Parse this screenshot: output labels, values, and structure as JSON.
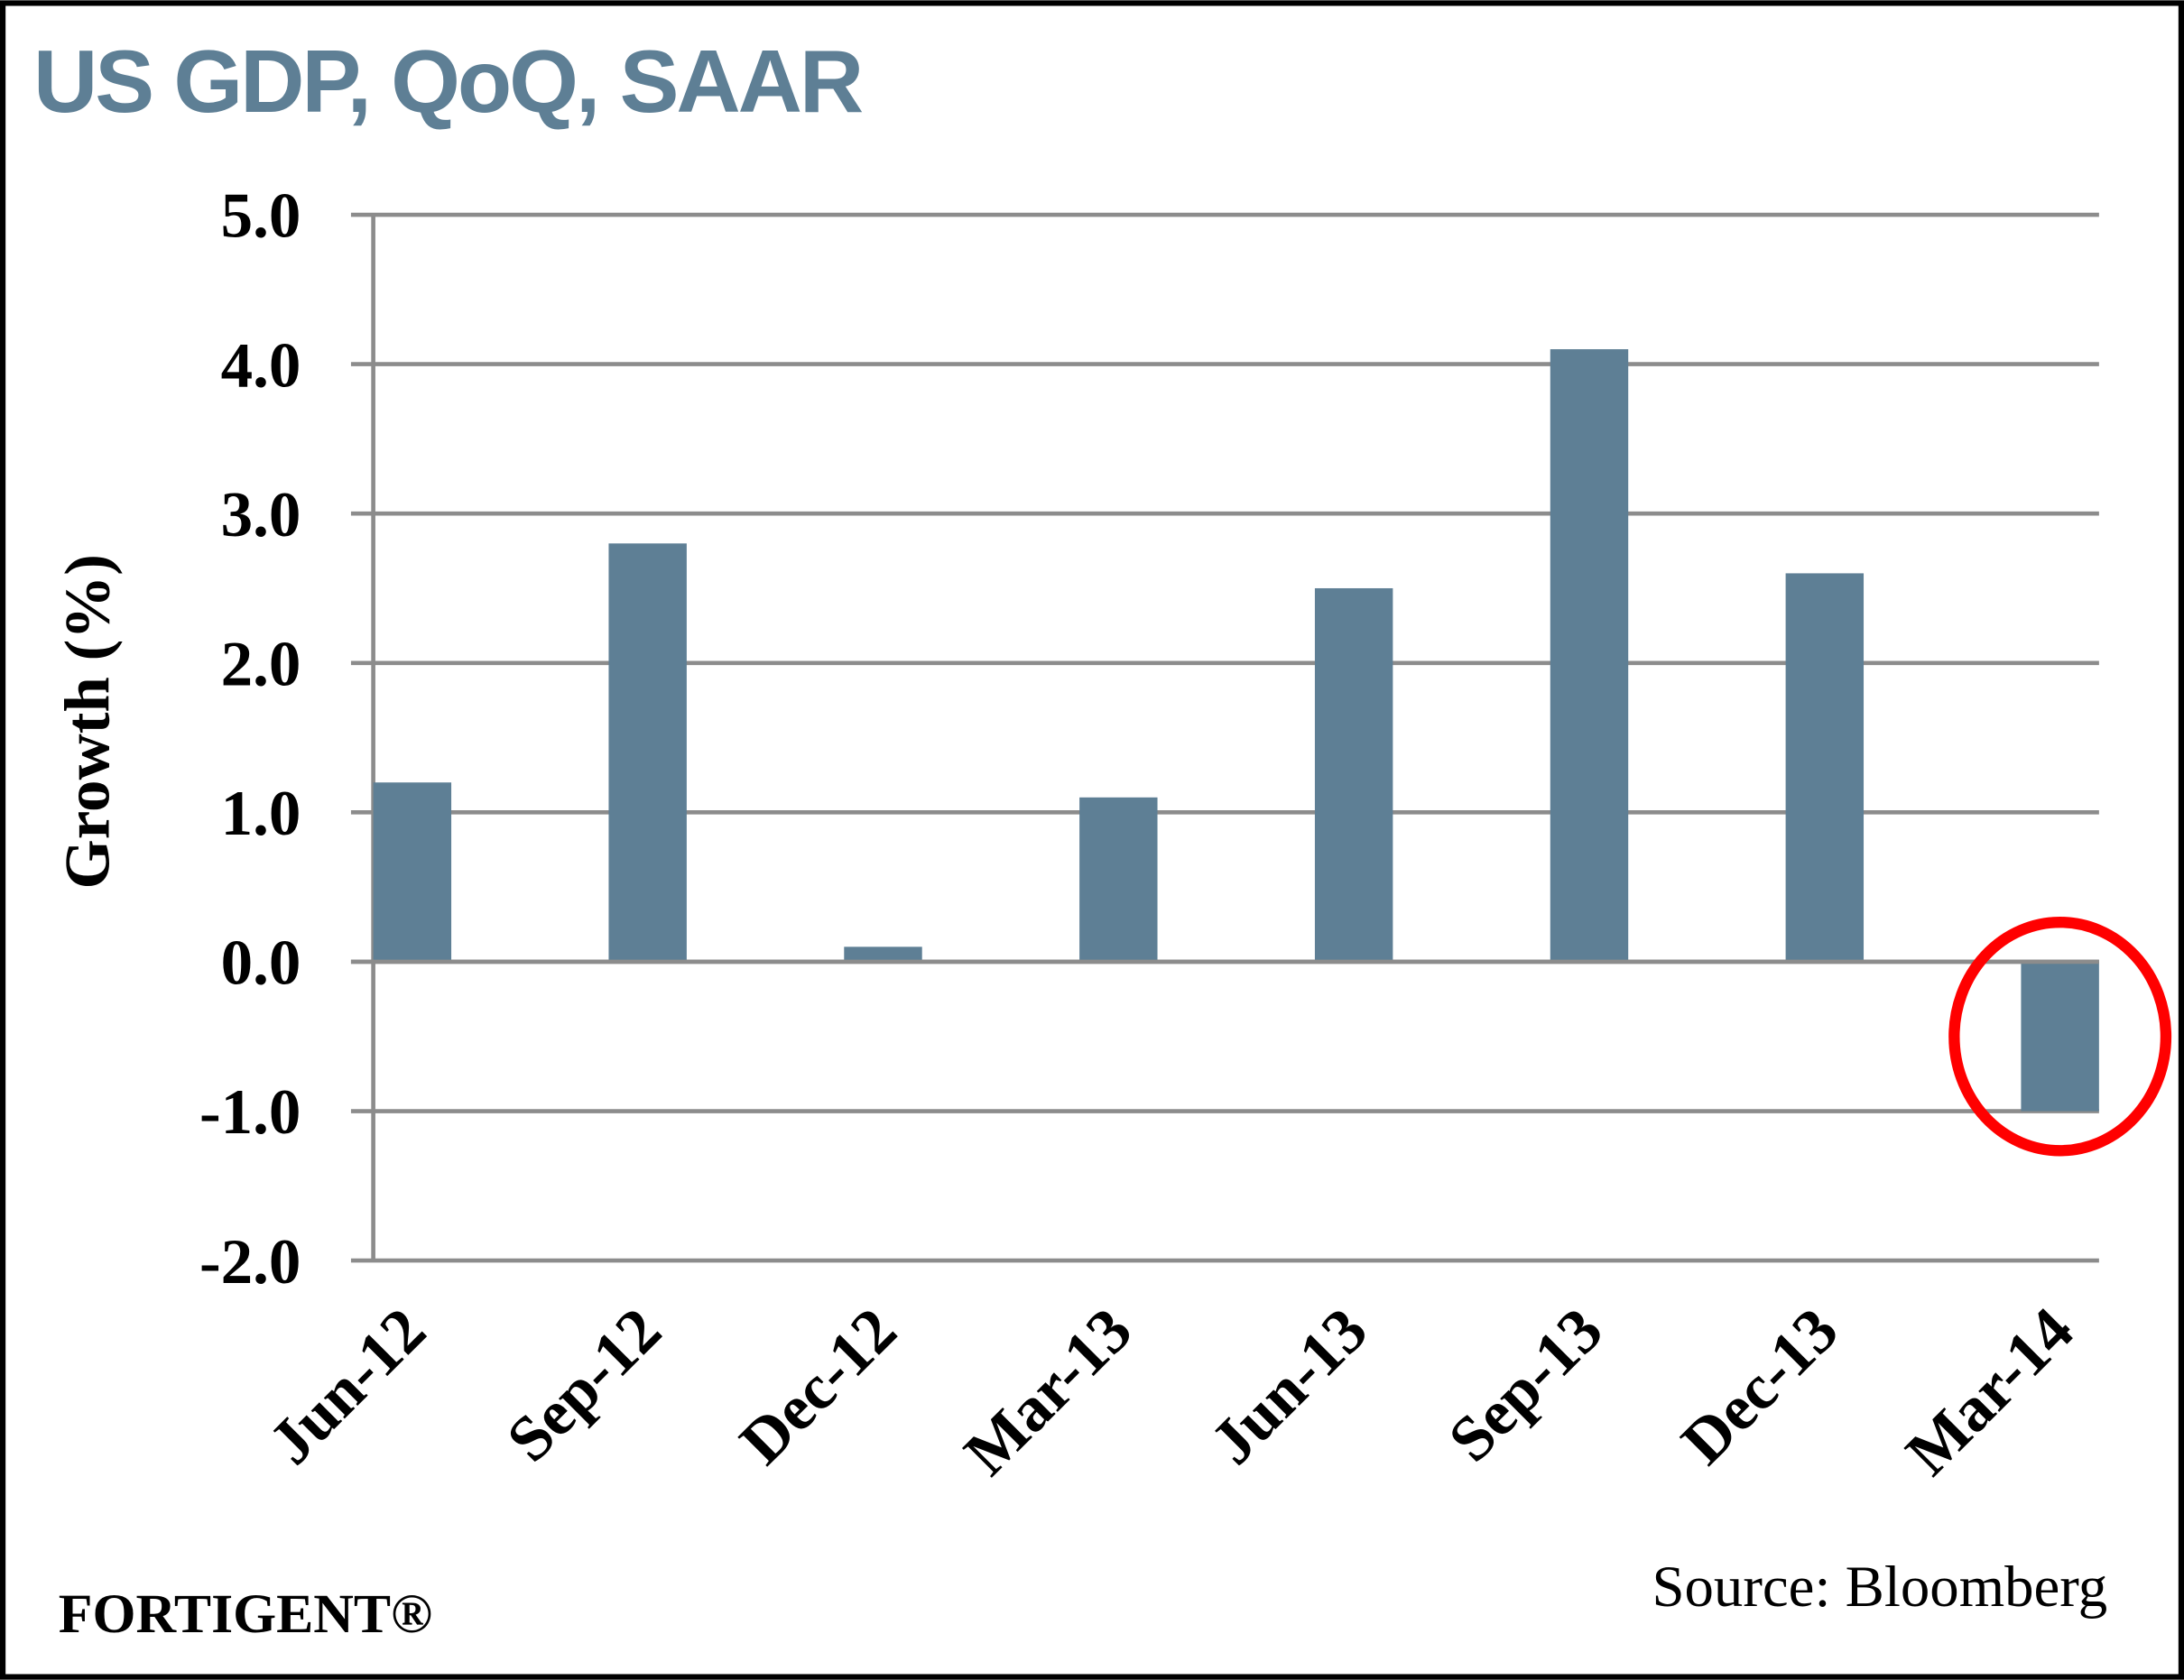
{
  "chart_data": {
    "type": "bar",
    "title": "US GDP, QoQ, SAAR",
    "xlabel": "",
    "ylabel": "Growth (%)",
    "categories": [
      "Jun-12",
      "Sep-12",
      "Dec-12",
      "Mar-13",
      "Jun-13",
      "Sep-13",
      "Dec-13",
      "Mar-14"
    ],
    "values": [
      1.2,
      2.8,
      0.1,
      1.1,
      2.5,
      4.1,
      2.6,
      -1.0
    ],
    "ylim": [
      -2.0,
      5.0
    ],
    "yticks": [
      "5.0",
      "4.0",
      "3.0",
      "2.0",
      "1.0",
      "0.0",
      "-1.0",
      "-2.0"
    ],
    "grid": true,
    "highlight": {
      "category": "Mar-14",
      "shape": "circle",
      "color": "#FF0000"
    },
    "colors": {
      "bar": "#5E7F95",
      "title": "#5E7F95",
      "grid": "#8C8C8C"
    }
  },
  "footer": {
    "brand": "FORTIGENT®",
    "source": "Source: Bloomberg"
  }
}
